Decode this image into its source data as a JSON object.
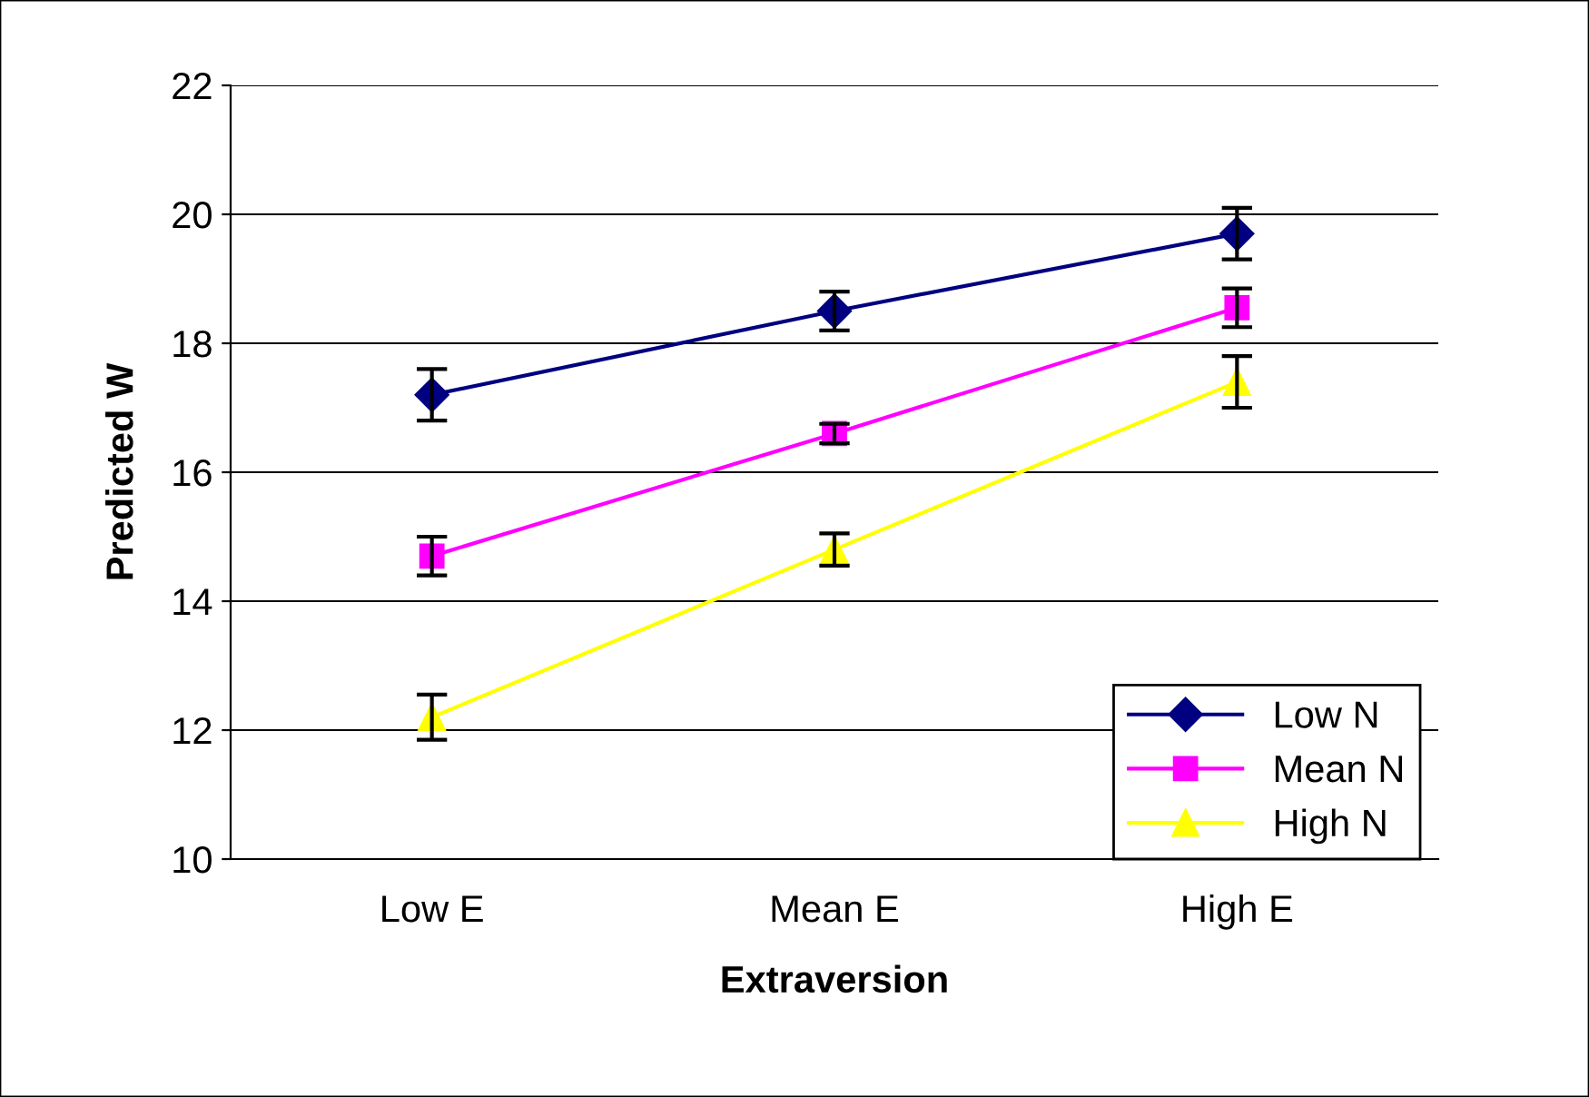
{
  "chart_data": {
    "type": "line",
    "xlabel": "Extraversion",
    "ylabel": "Predicted W",
    "categories": [
      "Low E",
      "Mean E",
      "High E"
    ],
    "series": [
      {
        "name": "Low N",
        "color": "#000080",
        "marker": "diamond",
        "values": [
          17.2,
          18.5,
          19.7
        ],
        "errors": [
          0.4,
          0.3,
          0.4
        ]
      },
      {
        "name": "Mean N",
        "color": "#ff00ff",
        "marker": "square",
        "values": [
          14.7,
          16.6,
          18.55
        ],
        "errors": [
          0.3,
          0.15,
          0.3
        ]
      },
      {
        "name": "High N",
        "color": "#ffff00",
        "marker": "triangle",
        "values": [
          12.2,
          14.8,
          17.4
        ],
        "errors": [
          0.35,
          0.25,
          0.4
        ]
      }
    ],
    "ylim": [
      10,
      22
    ],
    "yticks": [
      10,
      12,
      14,
      16,
      18,
      20,
      22
    ],
    "grid": "y",
    "legend": "bottom right",
    "line_style": "solid"
  }
}
